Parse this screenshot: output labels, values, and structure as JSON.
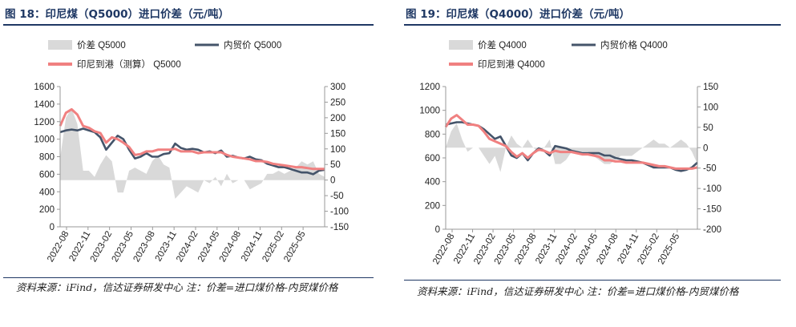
{
  "charts": [
    {
      "title": "图 18：印尼煤（Q5000）进口价差（元/吨）",
      "source": "资料来源：iFind，信达证券研发中心 注：价差=进口煤价格-内贸煤价格",
      "colors": {
        "spread": "#d9d9d9",
        "domestic": "#44546a",
        "import": "#f08080"
      }
    },
    {
      "title": "图 19：印尼煤（Q4000）进口价差（元/吨）",
      "source": "资料来源：iFind，信达证券研发中心 注：价差=进口煤价格-内贸煤价格",
      "colors": {
        "spread": "#d9d9d9",
        "domestic": "#44546a",
        "import": "#f08080"
      }
    }
  ],
  "chart_data": [
    {
      "type": "area+line",
      "title": "图 18：印尼煤（Q5000）进口价差（元/吨）",
      "legend": [
        "价差 Q5000",
        "内贸价 Q5000",
        "印尼到港（测算） Q5000"
      ],
      "legend_position": "top",
      "x_ticks": [
        "2022-08",
        "2022-11",
        "2023-02",
        "2023-05",
        "2023-08",
        "2023-11",
        "2024-02",
        "2024-05",
        "2024-08",
        "2024-11",
        "2025-02",
        "2025-05"
      ],
      "left_axis": {
        "ylim": [
          0,
          1600
        ],
        "ticks": [
          0,
          200,
          400,
          600,
          800,
          1000,
          1200,
          1400,
          1600
        ]
      },
      "right_axis": {
        "ylim": [
          -150,
          300
        ],
        "ticks": [
          -150,
          -100,
          -50,
          0,
          50,
          100,
          150,
          200,
          250,
          300
        ]
      },
      "series": [
        {
          "name": "内贸价 Q5000",
          "axis": "left",
          "values": [
            1080,
            1100,
            1110,
            1100,
            1120,
            1100,
            1080,
            1020,
            880,
            960,
            1040,
            1000,
            880,
            780,
            800,
            840,
            800,
            800,
            830,
            840,
            950,
            900,
            880,
            890,
            880,
            850,
            860,
            840,
            870,
            800,
            810,
            790,
            780,
            800,
            770,
            760,
            720,
            700,
            680,
            680,
            660,
            640,
            620,
            620,
            600,
            640,
            650
          ]
        },
        {
          "name": "印尼到港（测算） Q5000",
          "axis": "left",
          "values": [
            1150,
            1300,
            1340,
            1280,
            1150,
            1130,
            1090,
            1070,
            960,
            1020,
            1000,
            960,
            910,
            820,
            830,
            860,
            860,
            880,
            880,
            880,
            890,
            860,
            860,
            860,
            840,
            850,
            850,
            850,
            850,
            820,
            800,
            790,
            780,
            770,
            750,
            750,
            740,
            720,
            710,
            700,
            690,
            680,
            680,
            670,
            660,
            660,
            660
          ]
        },
        {
          "name": "价差 Q5000",
          "axis": "right",
          "values": [
            70,
            200,
            230,
            180,
            30,
            30,
            10,
            50,
            80,
            60,
            -40,
            -40,
            30,
            40,
            30,
            20,
            60,
            80,
            50,
            40,
            -60,
            -40,
            -20,
            -30,
            -40,
            0,
            -10,
            10,
            -20,
            20,
            -10,
            0,
            0,
            -30,
            -20,
            -10,
            20,
            20,
            30,
            20,
            30,
            40,
            60,
            50,
            60,
            20,
            10
          ]
        }
      ]
    },
    {
      "type": "area+line",
      "title": "图 19：印尼煤（Q4000）进口价差（元/吨）",
      "legend": [
        "价差 Q4000",
        "内贸价格 Q4000",
        "印尼到港 Q4000"
      ],
      "legend_position": "top",
      "x_ticks": [
        "2022-08",
        "2022-11",
        "2023-02",
        "2023-05",
        "2023-08",
        "2023-11",
        "2024-02",
        "2024-05",
        "2024-08",
        "2024-11",
        "2025-02",
        "2025-05"
      ],
      "left_axis": {
        "ylim": [
          0,
          1200
        ],
        "ticks": [
          0,
          200,
          400,
          600,
          800,
          1000,
          1200
        ]
      },
      "right_axis": {
        "ylim": [
          -200,
          150
        ],
        "ticks": [
          -200,
          -150,
          -100,
          -50,
          0,
          50,
          100,
          150
        ]
      },
      "series": [
        {
          "name": "内贸价格 Q4000",
          "axis": "left",
          "values": [
            880,
            890,
            900,
            900,
            890,
            880,
            870,
            840,
            800,
            760,
            780,
            700,
            620,
            600,
            640,
            580,
            640,
            680,
            660,
            620,
            700,
            690,
            680,
            660,
            650,
            640,
            640,
            640,
            640,
            620,
            620,
            600,
            590,
            580,
            580,
            570,
            560,
            540,
            520,
            520,
            520,
            520,
            500,
            490,
            500,
            520,
            560
          ]
        },
        {
          "name": "印尼到港 Q4000",
          "axis": "left",
          "values": [
            860,
            930,
            960,
            920,
            880,
            880,
            870,
            820,
            760,
            740,
            720,
            700,
            650,
            610,
            640,
            600,
            640,
            670,
            660,
            640,
            660,
            650,
            650,
            650,
            640,
            630,
            630,
            620,
            610,
            580,
            580,
            570,
            570,
            560,
            560,
            560,
            560,
            550,
            540,
            530,
            530,
            520,
            510,
            510,
            510,
            510,
            520
          ]
        },
        {
          "name": "价差 Q4000",
          "axis": "right",
          "values": [
            0,
            40,
            60,
            20,
            -10,
            0,
            0,
            -20,
            -40,
            -20,
            -60,
            0,
            30,
            10,
            0,
            20,
            0,
            -10,
            0,
            20,
            -40,
            -40,
            -30,
            -10,
            -10,
            -10,
            -10,
            -20,
            -30,
            -40,
            -40,
            -30,
            -20,
            -20,
            -20,
            -10,
            0,
            10,
            20,
            10,
            10,
            0,
            10,
            20,
            10,
            -10,
            -40
          ]
        }
      ]
    }
  ]
}
